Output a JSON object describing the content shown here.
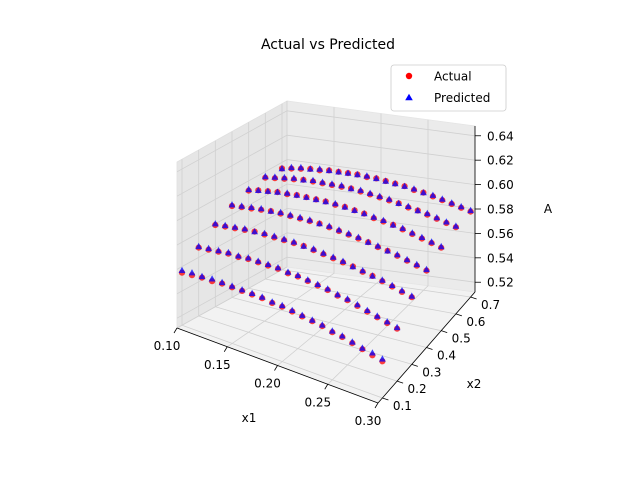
{
  "chart_data": {
    "type": "scatter",
    "projection": "3d",
    "title": "Actual vs Predicted",
    "xlabel": "x1",
    "ylabel": "x2",
    "zlabel": "A",
    "xlim": [
      0.1,
      0.3
    ],
    "ylim": [
      0.07,
      0.73
    ],
    "zlim": [
      0.512,
      0.648
    ],
    "xticks": [
      "0.10",
      "0.15",
      "0.20",
      "0.25",
      "0.30"
    ],
    "yticks": [
      "0.1",
      "0.2",
      "0.3",
      "0.4",
      "0.5",
      "0.6",
      "0.7"
    ],
    "zticks": [
      "0.52",
      "0.54",
      "0.56",
      "0.58",
      "0.60",
      "0.62",
      "0.64"
    ],
    "legend_position": "upper right",
    "grid": true,
    "x1_grid": [
      0.1,
      0.11,
      0.12,
      0.13,
      0.14,
      0.15,
      0.16,
      0.17,
      0.18,
      0.19,
      0.2,
      0.21,
      0.22,
      0.23,
      0.24,
      0.25,
      0.26,
      0.27,
      0.28,
      0.29,
      0.3
    ],
    "x2_grid": [
      0.1,
      0.2,
      0.3,
      0.4,
      0.5,
      0.6,
      0.7
    ],
    "series": [
      {
        "name": "Actual",
        "marker": "circle",
        "color": "#ff0000",
        "values": [
          [
            0.555,
            0.556,
            0.557,
            0.557,
            0.558,
            0.558,
            0.558,
            0.558,
            0.558,
            0.557,
            0.557,
            0.556,
            0.555,
            0.554,
            0.553,
            0.551,
            0.55,
            0.548,
            0.546,
            0.544,
            0.542
          ],
          [
            0.568,
            0.569,
            0.57,
            0.571,
            0.571,
            0.572,
            0.572,
            0.572,
            0.572,
            0.571,
            0.571,
            0.57,
            0.569,
            0.568,
            0.566,
            0.565,
            0.563,
            0.561,
            0.559,
            0.557,
            0.555
          ],
          [
            0.579,
            0.58,
            0.581,
            0.582,
            0.583,
            0.583,
            0.583,
            0.583,
            0.583,
            0.583,
            0.582,
            0.581,
            0.58,
            0.579,
            0.578,
            0.576,
            0.575,
            0.573,
            0.571,
            0.569,
            0.567
          ],
          [
            0.587,
            0.588,
            0.589,
            0.59,
            0.591,
            0.591,
            0.591,
            0.591,
            0.591,
            0.591,
            0.59,
            0.589,
            0.588,
            0.587,
            0.586,
            0.584,
            0.583,
            0.581,
            0.579,
            0.577,
            0.575
          ],
          [
            0.592,
            0.594,
            0.595,
            0.596,
            0.596,
            0.597,
            0.597,
            0.597,
            0.597,
            0.596,
            0.596,
            0.595,
            0.594,
            0.592,
            0.591,
            0.59,
            0.588,
            0.586,
            0.584,
            0.582,
            0.58
          ],
          [
            0.595,
            0.596,
            0.597,
            0.598,
            0.599,
            0.599,
            0.599,
            0.599,
            0.599,
            0.599,
            0.598,
            0.597,
            0.596,
            0.595,
            0.594,
            0.592,
            0.591,
            0.589,
            0.587,
            0.585,
            0.583
          ],
          [
            0.595,
            0.596,
            0.597,
            0.598,
            0.598,
            0.599,
            0.599,
            0.599,
            0.599,
            0.598,
            0.598,
            0.597,
            0.596,
            0.595,
            0.593,
            0.592,
            0.59,
            0.588,
            0.586,
            0.584,
            0.582
          ]
        ]
      },
      {
        "name": "Predicted",
        "marker": "triangle",
        "color": "#0000ff",
        "values": [
          [
            0.557,
            0.558,
            0.558,
            0.559,
            0.559,
            0.559,
            0.559,
            0.559,
            0.559,
            0.558,
            0.558,
            0.557,
            0.556,
            0.555,
            0.554,
            0.552,
            0.551,
            0.549,
            0.547,
            0.546,
            0.544
          ],
          [
            0.569,
            0.57,
            0.571,
            0.572,
            0.572,
            0.573,
            0.573,
            0.573,
            0.573,
            0.572,
            0.572,
            0.571,
            0.57,
            0.569,
            0.567,
            0.566,
            0.564,
            0.562,
            0.56,
            0.558,
            0.556
          ],
          [
            0.58,
            0.581,
            0.582,
            0.583,
            0.583,
            0.584,
            0.584,
            0.584,
            0.584,
            0.583,
            0.583,
            0.582,
            0.581,
            0.58,
            0.578,
            0.577,
            0.575,
            0.574,
            0.572,
            0.57,
            0.568
          ],
          [
            0.588,
            0.589,
            0.59,
            0.591,
            0.591,
            0.592,
            0.592,
            0.592,
            0.592,
            0.591,
            0.591,
            0.59,
            0.589,
            0.588,
            0.586,
            0.585,
            0.583,
            0.582,
            0.58,
            0.578,
            0.576
          ],
          [
            0.593,
            0.594,
            0.595,
            0.596,
            0.597,
            0.597,
            0.597,
            0.597,
            0.597,
            0.597,
            0.596,
            0.595,
            0.594,
            0.593,
            0.592,
            0.59,
            0.589,
            0.587,
            0.585,
            0.583,
            0.581
          ],
          [
            0.596,
            0.597,
            0.598,
            0.599,
            0.599,
            0.6,
            0.6,
            0.6,
            0.6,
            0.599,
            0.599,
            0.598,
            0.597,
            0.596,
            0.594,
            0.593,
            0.591,
            0.59,
            0.588,
            0.586,
            0.584
          ],
          [
            0.595,
            0.597,
            0.598,
            0.598,
            0.599,
            0.599,
            0.599,
            0.599,
            0.599,
            0.599,
            0.598,
            0.597,
            0.596,
            0.595,
            0.594,
            0.592,
            0.591,
            0.589,
            0.587,
            0.585,
            0.583
          ]
        ]
      }
    ]
  }
}
